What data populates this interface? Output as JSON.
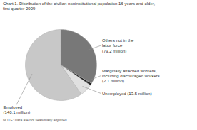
{
  "chart_data": {
    "type": "pie",
    "title": "Chart 1. Distribution of the civilian noninstitutional population 16 years and older,\nfirst quarter 2009",
    "annotations": [
      "NOTE: Data are not seasonally adjusted."
    ],
    "categories": [
      "Employed\n(140.1 million)",
      "Unemployed (13.5 million)",
      "Marginally attached workers,\nincluding discouraged workers\n(2.1 million)",
      "Others not in the\nlabor force\n(79.2 million)"
    ],
    "values": [
      140.1,
      13.5,
      2.1,
      79.2
    ],
    "colors": [
      "#c8c8c8",
      "#e0e0e0",
      "#222222",
      "#787878"
    ]
  }
}
